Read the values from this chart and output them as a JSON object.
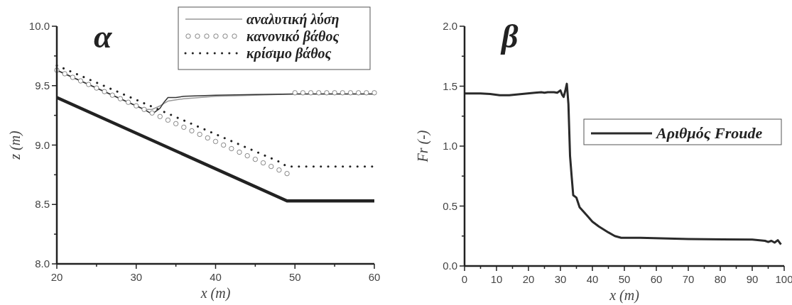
{
  "chart_data": [
    {
      "type": "line",
      "title": "α",
      "xlabel": "x (m)",
      "ylabel": "z (m)",
      "xlim": [
        20,
        60
      ],
      "ylim": [
        8,
        10
      ],
      "xticks": [
        20,
        {
          "value": 25,
          "label": null
        },
        30,
        {
          "value": 35,
          "label": null
        },
        40,
        {
          "value": 45,
          "label": null
        },
        50,
        {
          "value": 55,
          "label": null
        },
        60
      ],
      "yticks": [
        {
          "value": 8,
          "label": "8.0"
        },
        {
          "value": 8.25,
          "label": null
        },
        8.5,
        {
          "value": 8.75,
          "label": null
        },
        {
          "value": 9,
          "label": "9.0"
        },
        {
          "value": 9.25,
          "label": null
        },
        9.5,
        {
          "value": 9.75,
          "label": null
        },
        {
          "value": 10,
          "label": "10.0"
        }
      ],
      "legend": "top right",
      "grid": false,
      "series": [
        {
          "name": "αναλυτική λύση",
          "color": "#999999",
          "x": [
            20,
            31,
            32,
            33,
            34,
            36,
            40,
            45,
            50,
            60
          ],
          "values": [
            9.63,
            9.3,
            9.3,
            9.33,
            9.37,
            9.39,
            9.41,
            9.42,
            9.43,
            9.43
          ]
        },
        {
          "color": "#333333",
          "x": [
            20,
            31,
            32,
            33,
            33.5,
            34,
            35,
            36,
            40,
            45,
            50,
            60
          ],
          "values": [
            9.63,
            9.3,
            9.26,
            9.31,
            9.36,
            9.4,
            9.4,
            9.41,
            9.42,
            9.425,
            9.43,
            9.43
          ]
        },
        {
          "name": "κανονικό βάθος",
          "type": "scatter",
          "marker": "circle",
          "color": "#777777",
          "x": [
            20,
            21,
            22,
            23,
            24,
            25,
            26,
            27,
            28,
            29,
            30,
            31,
            32,
            33,
            34,
            35,
            36,
            37,
            38,
            39,
            40,
            41,
            42,
            43,
            44,
            45,
            46,
            47,
            48,
            49,
            50,
            51,
            52,
            53,
            54,
            55,
            56,
            57,
            58,
            59,
            60
          ],
          "values": [
            9.63,
            9.6,
            9.57,
            9.54,
            9.51,
            9.48,
            9.45,
            9.42,
            9.39,
            9.36,
            9.33,
            9.3,
            9.27,
            9.24,
            9.21,
            9.18,
            9.15,
            9.12,
            9.09,
            9.06,
            9.03,
            9.0,
            8.97,
            8.94,
            8.91,
            8.88,
            8.85,
            8.82,
            8.79,
            8.76,
            9.44,
            9.44,
            9.44,
            9.44,
            9.44,
            9.44,
            9.44,
            9.44,
            9.44,
            9.44,
            9.44
          ]
        },
        {
          "name": "κρίσιμο βάθος",
          "line_style": "dotted",
          "color": "#222222",
          "x": [
            20,
            48,
            49,
            60
          ],
          "values": [
            9.67,
            8.86,
            8.82,
            8.82
          ]
        },
        {
          "color": "#222222",
          "x": [
            20,
            49,
            60
          ],
          "values": [
            9.4,
            8.53,
            8.53
          ]
        }
      ]
    },
    {
      "type": "line",
      "title": "β",
      "xlabel": "x (m)",
      "ylabel": "Fr (-)",
      "xlim": [
        0,
        100
      ],
      "ylim": [
        0,
        2
      ],
      "xticks": [
        0,
        {
          "value": 5,
          "label": null
        },
        10,
        {
          "value": 15,
          "label": null
        },
        20,
        {
          "value": 25,
          "label": null
        },
        30,
        {
          "value": 35,
          "label": null
        },
        40,
        {
          "value": 45,
          "label": null
        },
        50,
        {
          "value": 55,
          "label": null
        },
        60,
        {
          "value": 65,
          "label": null
        },
        70,
        {
          "value": 75,
          "label": null
        },
        80,
        {
          "value": 85,
          "label": null
        },
        90,
        {
          "value": 95,
          "label": null
        },
        100
      ],
      "yticks": [
        {
          "value": 0,
          "label": "0.0"
        },
        {
          "value": 0.25,
          "label": null
        },
        0.5,
        {
          "value": 0.75,
          "label": null
        },
        {
          "value": 1,
          "label": "1.0"
        },
        {
          "value": 1.25,
          "label": null
        },
        1.5,
        {
          "value": 1.75,
          "label": null
        },
        {
          "value": 2,
          "label": "2.0"
        }
      ],
      "legend": "right",
      "grid": false,
      "series": [
        {
          "name": "Αριθμός Froude",
          "color": "#2a2a2a",
          "x": [
            0,
            5,
            8,
            11,
            14,
            18,
            22,
            24,
            25,
            26,
            28,
            29,
            30,
            30.5,
            31,
            31.5,
            32,
            32.5,
            33,
            33.5,
            34,
            35,
            36,
            38,
            40,
            42,
            45,
            47,
            49,
            55,
            70,
            90,
            94,
            95,
            96,
            97,
            98,
            99
          ],
          "values": [
            1.44,
            1.44,
            1.435,
            1.425,
            1.425,
            1.435,
            1.445,
            1.45,
            1.445,
            1.45,
            1.45,
            1.445,
            1.465,
            1.43,
            1.41,
            1.46,
            1.52,
            1.35,
            0.92,
            0.75,
            0.59,
            0.57,
            0.49,
            0.43,
            0.37,
            0.33,
            0.28,
            0.25,
            0.235,
            0.235,
            0.225,
            0.22,
            0.21,
            0.2,
            0.21,
            0.195,
            0.215,
            0.18
          ]
        }
      ]
    }
  ]
}
